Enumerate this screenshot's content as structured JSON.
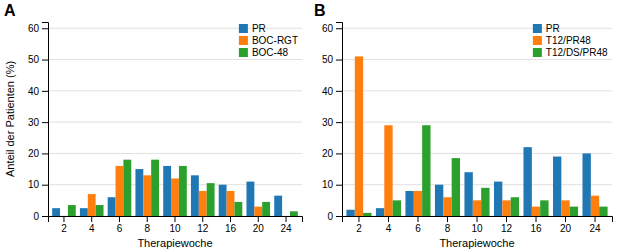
{
  "chart_data": [
    {
      "type": "bar",
      "title": "A",
      "categories": [
        "2",
        "4",
        "6",
        "8",
        "10",
        "12",
        "16",
        "20",
        "24"
      ],
      "series": [
        {
          "name": "PR",
          "values": [
            2.5,
            2.5,
            6,
            15,
            16,
            13,
            10,
            11,
            6.5
          ]
        },
        {
          "name": "BOC-RGT",
          "values": [
            0,
            7,
            16,
            13,
            12,
            8,
            8,
            3,
            0
          ]
        },
        {
          "name": "BOC-48",
          "values": [
            3.5,
            3.5,
            18,
            18,
            16,
            10.5,
            4.5,
            4.5,
            1.5
          ]
        }
      ],
      "xlabel": "Therapiewoche",
      "ylabel": "Anteil der Patienten (%)",
      "ylim": [
        0,
        62
      ],
      "yticks": [
        0,
        10,
        20,
        30,
        40,
        50,
        60
      ],
      "grid": true,
      "legend": "upper right"
    },
    {
      "type": "bar",
      "title": "B",
      "categories": [
        "2",
        "4",
        "6",
        "8",
        "10",
        "12",
        "16",
        "20",
        "24"
      ],
      "series": [
        {
          "name": "PR",
          "values": [
            2,
            2.5,
            8,
            10,
            14,
            11,
            22,
            19,
            20
          ]
        },
        {
          "name": "T12/PR48",
          "values": [
            51,
            29,
            8,
            6,
            5,
            5,
            3,
            5,
            6.5
          ]
        },
        {
          "name": "T12/DS/PR48",
          "values": [
            1,
            5,
            29,
            18.5,
            9,
            6,
            5,
            3,
            3
          ]
        }
      ],
      "xlabel": "Therapiewoche",
      "ylim": [
        0,
        62
      ],
      "yticks": [
        0,
        10,
        20,
        30,
        40,
        50,
        60
      ],
      "grid": true,
      "legend": "upper right"
    }
  ]
}
